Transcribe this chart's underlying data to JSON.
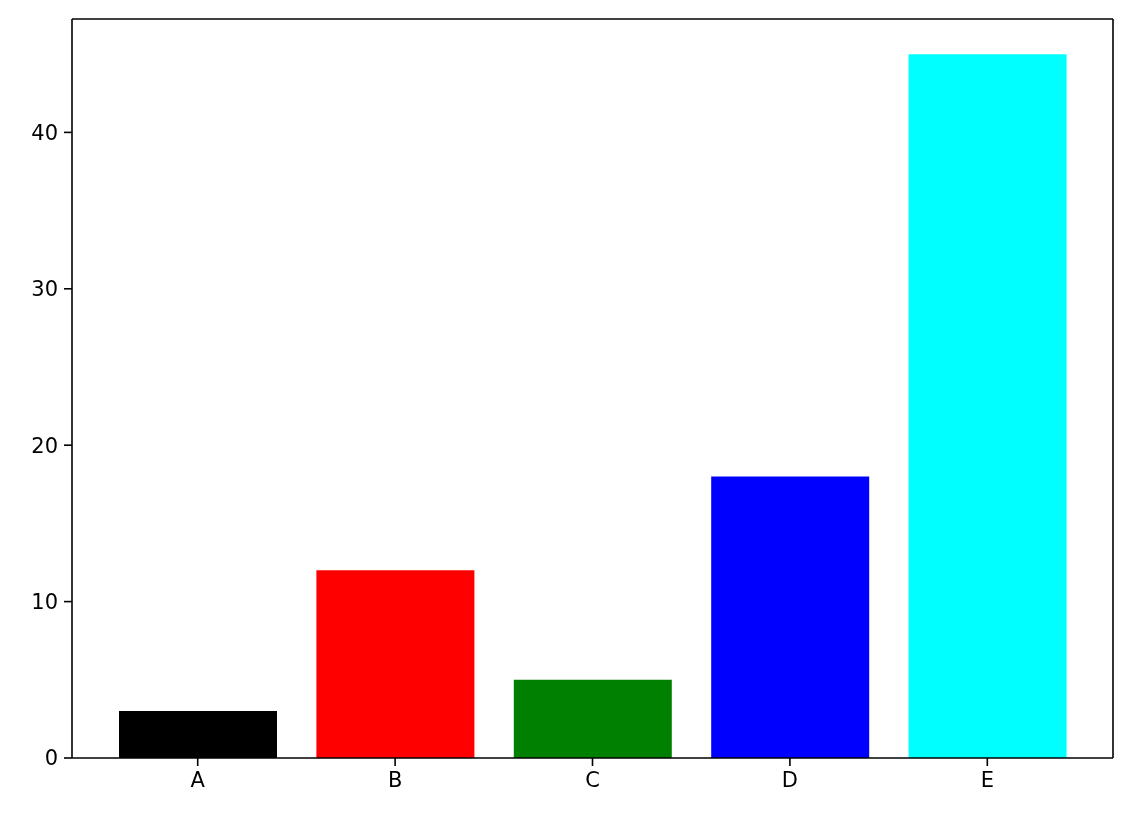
{
  "chart_data": {
    "type": "bar",
    "categories": [
      "A",
      "B",
      "C",
      "D",
      "E"
    ],
    "values": [
      3,
      12,
      5,
      18,
      45
    ],
    "colors": [
      "#000000",
      "#ff0000",
      "#008000",
      "#0000ff",
      "#00ffff"
    ],
    "ylim": [
      0,
      47.25
    ],
    "yticks": [
      0,
      10,
      20,
      30,
      40
    ]
  }
}
